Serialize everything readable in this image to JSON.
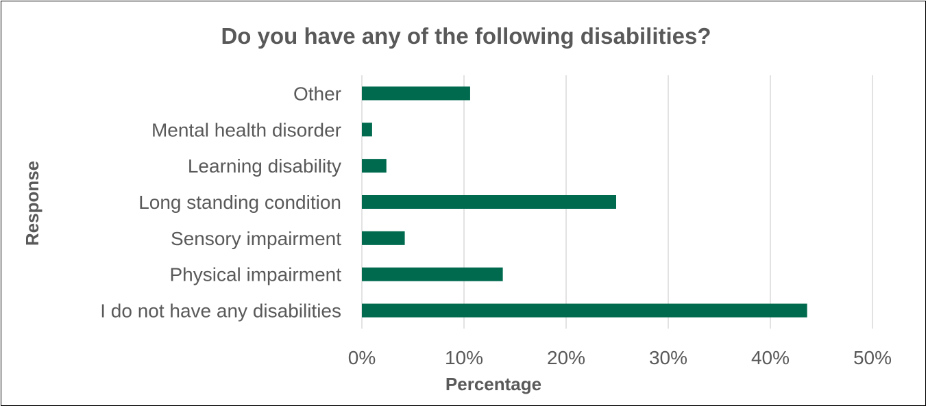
{
  "chart_data": {
    "type": "bar",
    "orientation": "horizontal",
    "title": "Do you have any of the following disabilities?",
    "xlabel": "Percentage",
    "ylabel": "Response",
    "categories": [
      "I do not have any disabilities",
      "Physical impairment",
      "Sensory impairment",
      "Long standing condition",
      "Learning disability",
      "Mental health disorder",
      "Other"
    ],
    "values": [
      43.6,
      13.8,
      4.2,
      24.9,
      2.4,
      1.0,
      10.6
    ],
    "xlim": [
      0,
      50
    ],
    "xticks": [
      "0%",
      "10%",
      "20%",
      "30%",
      "40%",
      "50%"
    ],
    "xtick_values": [
      0,
      10,
      20,
      30,
      40,
      50
    ],
    "grid": true,
    "bar_color": "#006a4e",
    "grid_color": "#d9d9d9",
    "text_color": "#595959"
  }
}
